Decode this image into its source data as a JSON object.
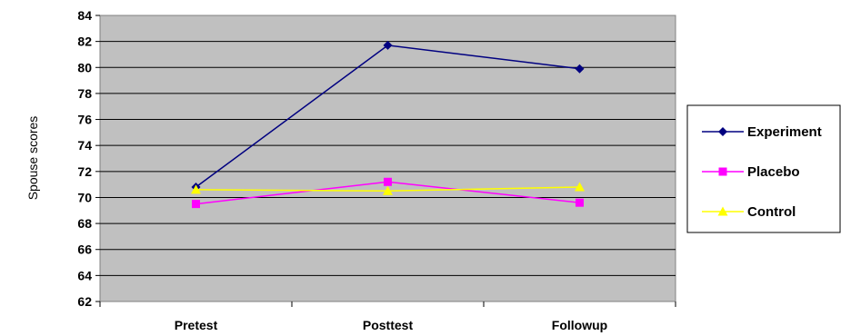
{
  "chart_data": {
    "type": "line",
    "title": "",
    "xlabel": "",
    "ylabel": "Spouse scores",
    "ylim": [
      62,
      84
    ],
    "yticks": [
      62,
      64,
      66,
      68,
      70,
      72,
      74,
      76,
      78,
      80,
      82,
      84
    ],
    "categories": [
      "Pretest",
      "Posttest",
      "Followup"
    ],
    "grid": true,
    "legend": "right",
    "series": [
      {
        "name": "Experiment",
        "values": [
          70.8,
          81.7,
          79.9
        ],
        "color": "#000080",
        "marker": "diamond"
      },
      {
        "name": "Placebo",
        "values": [
          69.5,
          71.2,
          69.6
        ],
        "color": "#FF00FF",
        "marker": "square"
      },
      {
        "name": "Control",
        "values": [
          70.6,
          70.5,
          70.8
        ],
        "color": "#FFFF00",
        "marker": "triangle"
      }
    ]
  }
}
